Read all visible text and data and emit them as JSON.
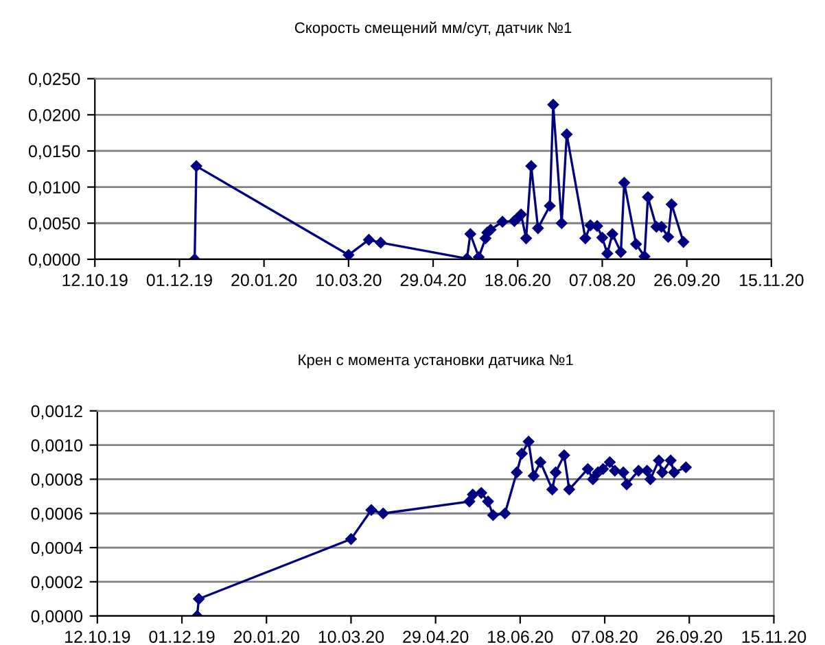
{
  "chart_data": [
    {
      "type": "line",
      "title": "Скорость смещений мм/сут, датчик №1",
      "marker": "diamond",
      "grid": "y",
      "line_style": "solid",
      "x": [
        "2019-12-10",
        "2019-12-11",
        "2020-03-10",
        "2020-03-22",
        "2020-03-29",
        "2020-05-19",
        "2020-05-21",
        "2020-05-26",
        "2020-05-30",
        "2020-05-31",
        "2020-06-02",
        "2020-06-09",
        "2020-06-16",
        "2020-06-18",
        "2020-06-20",
        "2020-06-23",
        "2020-06-26",
        "2020-06-30",
        "2020-07-07",
        "2020-07-09",
        "2020-07-14",
        "2020-07-17",
        "2020-07-28",
        "2020-07-31",
        "2020-08-04",
        "2020-08-07",
        "2020-08-10",
        "2020-08-13",
        "2020-08-18",
        "2020-08-20",
        "2020-08-27",
        "2020-09-01",
        "2020-09-03",
        "2020-09-08",
        "2020-09-11",
        "2020-09-15",
        "2020-09-17",
        "2020-09-24"
      ],
      "series": [
        {
          "color": "#000080",
          "values": [
            0,
            0.0129,
            0.0006,
            0.0027,
            0.0023,
            0.0001,
            0.0035,
            0.0003,
            0.0029,
            0.0037,
            0.0041,
            0.0052,
            0.0053,
            0.0057,
            0.0062,
            0.0029,
            0.0129,
            0.0043,
            0.0074,
            0.0214,
            0.005,
            0.0173,
            0.0029,
            0.0047,
            0.0046,
            0.003,
            0.0008,
            0.0035,
            0.001,
            0.0106,
            0.0021,
            0.0004,
            0.0086,
            0.0045,
            0.0045,
            0.0031,
            0.0076,
            0.0024
          ]
        }
      ],
      "xlim": [
        "2019-10-12",
        "2020-11-15"
      ],
      "xticks": [
        {
          "value": "2019-10-12",
          "label": "12.10.19"
        },
        {
          "value": "2019-12-01",
          "label": "01.12.19"
        },
        {
          "value": "2020-01-20",
          "label": "20.01.20"
        },
        {
          "value": "2020-03-10",
          "label": "10.03.20"
        },
        {
          "value": "2020-04-29",
          "label": "29.04.20"
        },
        {
          "value": "2020-06-18",
          "label": "18.06.20"
        },
        {
          "value": "2020-08-07",
          "label": "07.08.20"
        },
        {
          "value": "2020-09-26",
          "label": "26.09.20"
        },
        {
          "value": "2020-11-15",
          "label": "15.11.20"
        }
      ],
      "ylim": [
        0,
        0.025
      ],
      "yticks": [
        {
          "value": 0,
          "label": "0,0000"
        },
        {
          "value": 0.005,
          "label": "0,0050"
        },
        {
          "value": 0.01,
          "label": "0,0100"
        },
        {
          "value": 0.015,
          "label": "0,0150"
        },
        {
          "value": 0.02,
          "label": "0,0200"
        },
        {
          "value": 0.025,
          "label": "0,0250"
        }
      ]
    },
    {
      "type": "line",
      "title": "Крен с момента установки датчика №1",
      "marker": "diamond",
      "grid": "y",
      "line_style": "solid",
      "x": [
        "2019-12-10",
        "2019-12-11",
        "2020-03-10",
        "2020-03-22",
        "2020-03-29",
        "2020-05-19",
        "2020-05-21",
        "2020-05-26",
        "2020-05-30",
        "2020-06-02",
        "2020-06-09",
        "2020-06-16",
        "2020-06-19",
        "2020-06-23",
        "2020-06-26",
        "2020-06-30",
        "2020-07-07",
        "2020-07-09",
        "2020-07-14",
        "2020-07-17",
        "2020-07-28",
        "2020-07-31",
        "2020-08-03",
        "2020-08-06",
        "2020-08-10",
        "2020-08-13",
        "2020-08-18",
        "2020-08-20",
        "2020-08-27",
        "2020-09-01",
        "2020-09-03",
        "2020-09-08",
        "2020-09-10",
        "2020-09-15",
        "2020-09-17",
        "2020-09-24"
      ],
      "series": [
        {
          "color": "#000080",
          "values": [
            0,
            0.0001,
            0.00045,
            0.00062,
            0.0006,
            0.00067,
            0.00071,
            0.00072,
            0.00067,
            0.00059,
            0.0006,
            0.00084,
            0.00095,
            0.00102,
            0.00082,
            0.0009,
            0.00074,
            0.00084,
            0.00094,
            0.00074,
            0.00086,
            0.0008,
            0.00084,
            0.00086,
            0.0009,
            0.00085,
            0.00084,
            0.00077,
            0.00085,
            0.00085,
            0.0008,
            0.00091,
            0.00084,
            0.00091,
            0.00084,
            0.00087
          ]
        }
      ],
      "xlim": [
        "2019-10-12",
        "2020-11-15"
      ],
      "xticks": [
        {
          "value": "2019-10-12",
          "label": "12.10.19"
        },
        {
          "value": "2019-12-01",
          "label": "01.12.19"
        },
        {
          "value": "2020-01-20",
          "label": "20.01.20"
        },
        {
          "value": "2020-03-10",
          "label": "10.03.20"
        },
        {
          "value": "2020-04-29",
          "label": "29.04.20"
        },
        {
          "value": "2020-06-18",
          "label": "18.06.20"
        },
        {
          "value": "2020-08-07",
          "label": "07.08.20"
        },
        {
          "value": "2020-09-26",
          "label": "26.09.20"
        },
        {
          "value": "2020-11-15",
          "label": "15.11.20"
        }
      ],
      "ylim": [
        0,
        0.0012
      ],
      "yticks": [
        {
          "value": 0,
          "label": "0,0000"
        },
        {
          "value": 0.0002,
          "label": "0,0002"
        },
        {
          "value": 0.0004,
          "label": "0,0004"
        },
        {
          "value": 0.0006,
          "label": "0,0006"
        },
        {
          "value": 0.0008,
          "label": "0,0008"
        },
        {
          "value": 0.001,
          "label": "0,0010"
        },
        {
          "value": 0.0012,
          "label": "0,0012"
        }
      ]
    }
  ]
}
